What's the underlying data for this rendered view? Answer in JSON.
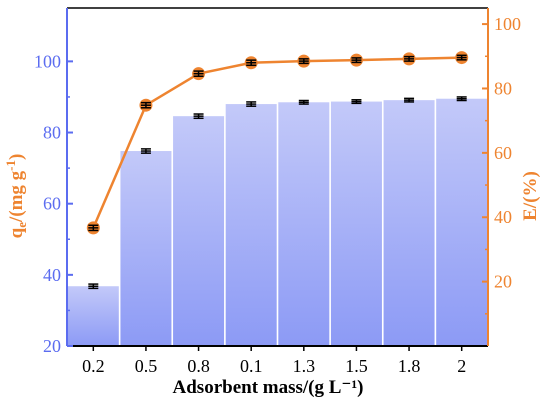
{
  "chart_data": {
    "type": "bar",
    "categories": [
      "0.2",
      "0.5",
      "0.8",
      "0.1",
      "1.3",
      "1.5",
      "1.8",
      "2"
    ],
    "xlabel": "Adsorbent mass/(g L⁻¹)",
    "ylabel_left": {
      "main": "q",
      "sub": "e",
      "rest": "/(mg g",
      "sup": "-1",
      "close": ")"
    },
    "ylabel_right": "E/(%)",
    "left_axis": {
      "ylim": [
        20,
        115
      ],
      "ticks": [
        20,
        40,
        60,
        80,
        100
      ]
    },
    "right_axis": {
      "ylim": [
        0,
        105
      ],
      "ticks": [
        20,
        40,
        60,
        80,
        100
      ]
    },
    "grid": false,
    "series": [
      {
        "type": "bar",
        "axis": "left",
        "values": [
          36.8,
          74.8,
          84.6,
          88.0,
          88.5,
          88.7,
          89.1,
          89.5
        ],
        "errors": [
          0.6,
          0.6,
          0.6,
          0.6,
          0.5,
          0.5,
          0.5,
          0.5
        ]
      },
      {
        "type": "line",
        "axis": "right",
        "values": [
          36.7,
          74.8,
          84.6,
          88.0,
          88.5,
          88.8,
          89.2,
          89.6
        ],
        "errors": [
          0.8,
          0.8,
          0.8,
          0.8,
          0.7,
          0.7,
          0.7,
          0.7
        ]
      }
    ],
    "colors": {
      "bar_top": "#c3c9f9",
      "bar_bottom": "#8c9af5",
      "left_axis": "#5b6cf0",
      "right_axis": "#ee8430",
      "line": "#ee8430",
      "error": "#000000",
      "text": "#000000"
    }
  }
}
